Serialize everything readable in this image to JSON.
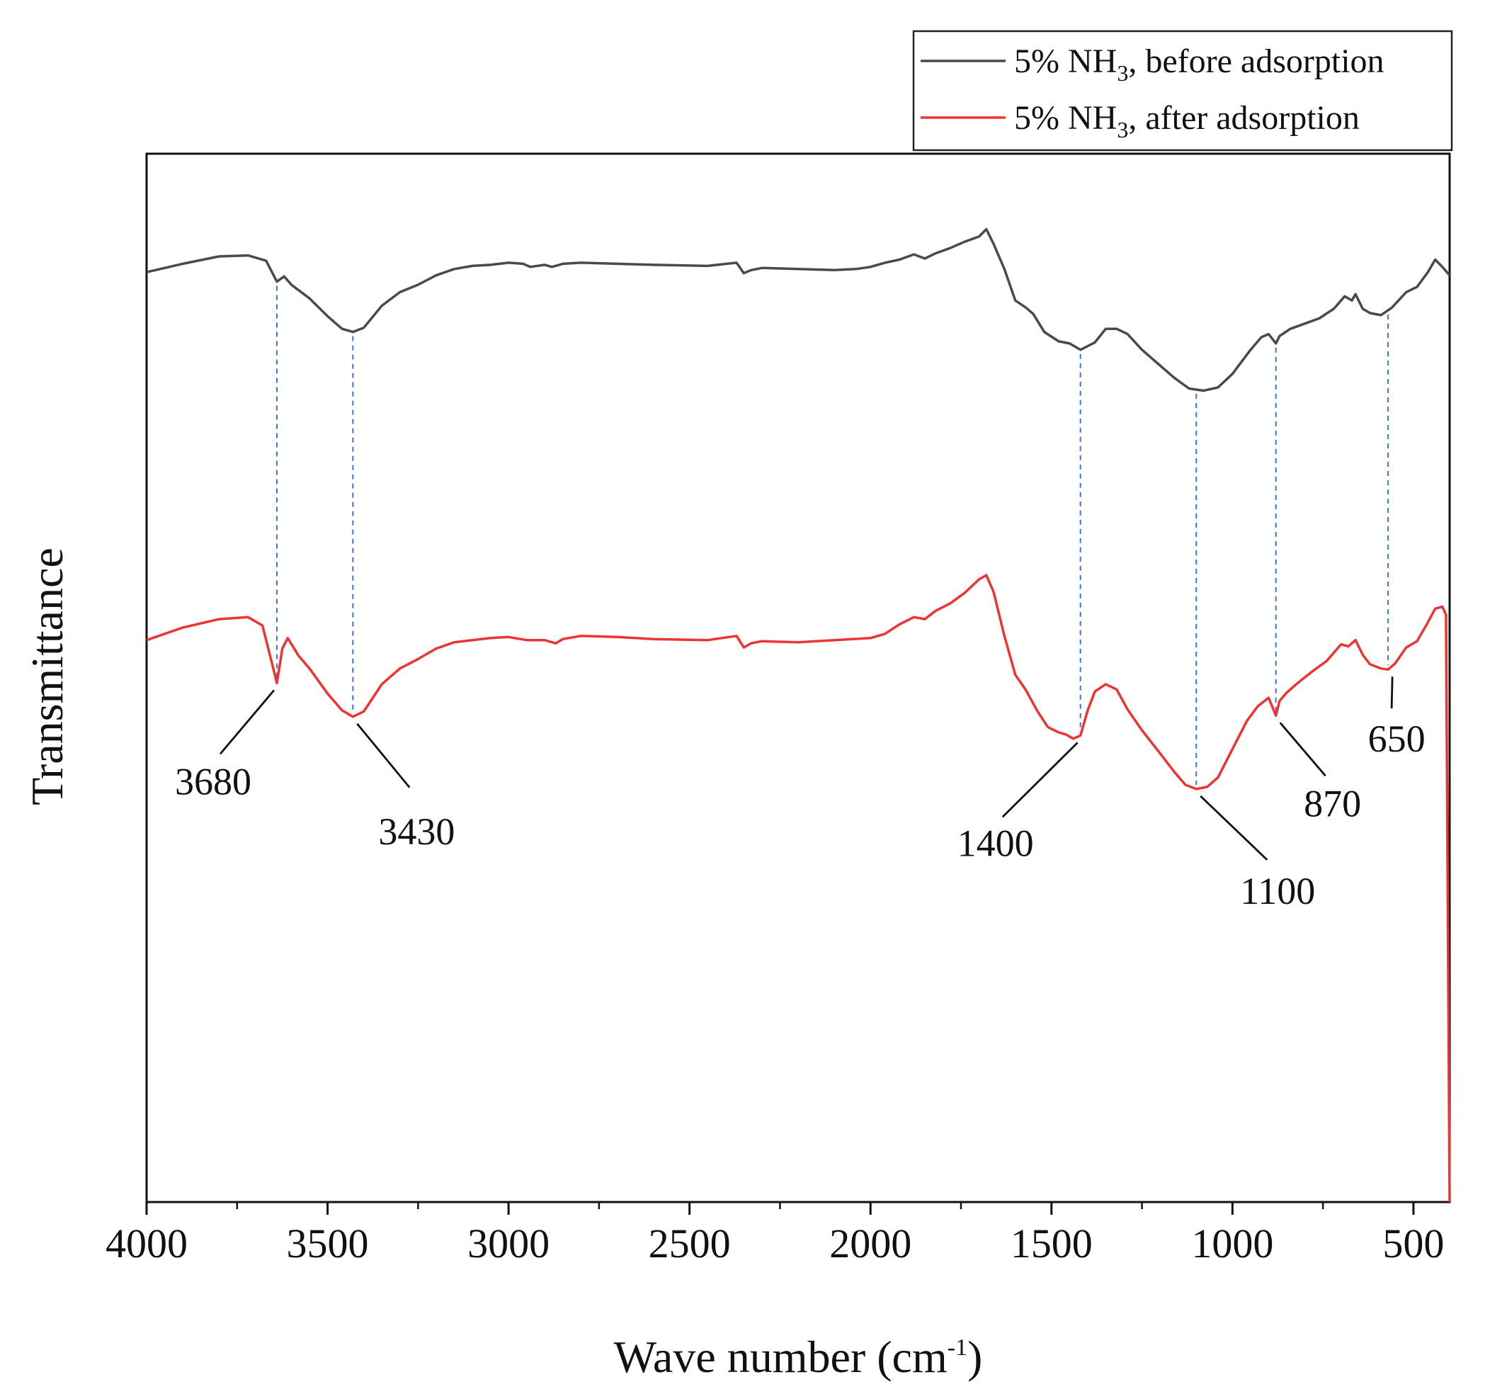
{
  "chart_data": {
    "type": "line",
    "title": "",
    "xlabel": {
      "main": "Wave number (cm",
      "sup": "-1",
      "close": ")"
    },
    "ylabel": "Transmittance",
    "xlim": [
      4000,
      400
    ],
    "x_reversed": true,
    "ylim": [
      0,
      100
    ],
    "grid": false,
    "y_tick_labels": false,
    "x_ticks": [
      4000,
      3500,
      3000,
      2500,
      2000,
      1500,
      1000,
      500
    ],
    "legend": {
      "placement": "top-right, above plot",
      "entries": [
        {
          "prefix": "5% NH",
          "sub": "3",
          "suffix": ", before adsorption",
          "color": "#4a4a4a"
        },
        {
          "prefix": "5% NH",
          "sub": "3",
          "suffix": ", after adsorption",
          "color": "#ee3333"
        }
      ]
    },
    "series": [
      {
        "color": "#4a4a4a",
        "points": [
          [
            4000,
            88.7
          ],
          [
            3900,
            89.5
          ],
          [
            3800,
            90.2
          ],
          [
            3720,
            90.3
          ],
          [
            3670,
            89.8
          ],
          [
            3640,
            87.8
          ],
          [
            3620,
            88.3
          ],
          [
            3600,
            87.5
          ],
          [
            3550,
            86.2
          ],
          [
            3500,
            84.5
          ],
          [
            3460,
            83.3
          ],
          [
            3430,
            83.0
          ],
          [
            3400,
            83.4
          ],
          [
            3350,
            85.5
          ],
          [
            3300,
            86.8
          ],
          [
            3250,
            87.5
          ],
          [
            3200,
            88.4
          ],
          [
            3150,
            89.0
          ],
          [
            3100,
            89.3
          ],
          [
            3050,
            89.4
          ],
          [
            3000,
            89.6
          ],
          [
            2960,
            89.5
          ],
          [
            2940,
            89.2
          ],
          [
            2900,
            89.4
          ],
          [
            2880,
            89.2
          ],
          [
            2850,
            89.5
          ],
          [
            2800,
            89.6
          ],
          [
            2700,
            89.5
          ],
          [
            2600,
            89.4
          ],
          [
            2450,
            89.3
          ],
          [
            2370,
            89.6
          ],
          [
            2350,
            88.6
          ],
          [
            2330,
            88.9
          ],
          [
            2300,
            89.1
          ],
          [
            2200,
            89.0
          ],
          [
            2100,
            88.9
          ],
          [
            2040,
            89.0
          ],
          [
            2000,
            89.2
          ],
          [
            1960,
            89.6
          ],
          [
            1920,
            89.9
          ],
          [
            1880,
            90.4
          ],
          [
            1850,
            90.0
          ],
          [
            1820,
            90.5
          ],
          [
            1780,
            91.0
          ],
          [
            1740,
            91.6
          ],
          [
            1700,
            92.1
          ],
          [
            1680,
            92.8
          ],
          [
            1660,
            91.4
          ],
          [
            1630,
            89.0
          ],
          [
            1600,
            86.0
          ],
          [
            1570,
            85.3
          ],
          [
            1550,
            84.7
          ],
          [
            1520,
            83.0
          ],
          [
            1480,
            82.1
          ],
          [
            1450,
            81.9
          ],
          [
            1420,
            81.3
          ],
          [
            1380,
            82.0
          ],
          [
            1350,
            83.3
          ],
          [
            1320,
            83.3
          ],
          [
            1290,
            82.8
          ],
          [
            1250,
            81.3
          ],
          [
            1200,
            79.8
          ],
          [
            1160,
            78.6
          ],
          [
            1120,
            77.6
          ],
          [
            1080,
            77.4
          ],
          [
            1040,
            77.7
          ],
          [
            1000,
            79.0
          ],
          [
            950,
            81.3
          ],
          [
            920,
            82.5
          ],
          [
            900,
            82.8
          ],
          [
            880,
            81.9
          ],
          [
            870,
            82.6
          ],
          [
            840,
            83.3
          ],
          [
            800,
            83.8
          ],
          [
            760,
            84.3
          ],
          [
            720,
            85.2
          ],
          [
            690,
            86.4
          ],
          [
            670,
            86.0
          ],
          [
            660,
            86.6
          ],
          [
            640,
            85.2
          ],
          [
            620,
            84.8
          ],
          [
            590,
            84.6
          ],
          [
            560,
            85.3
          ],
          [
            520,
            86.8
          ],
          [
            490,
            87.3
          ],
          [
            460,
            88.7
          ],
          [
            440,
            89.9
          ],
          [
            420,
            89.2
          ],
          [
            400,
            88.4
          ]
        ]
      },
      {
        "color": "#ee3333",
        "points": [
          [
            4000,
            53.6
          ],
          [
            3900,
            54.8
          ],
          [
            3800,
            55.6
          ],
          [
            3720,
            55.8
          ],
          [
            3680,
            55.0
          ],
          [
            3650,
            50.9
          ],
          [
            3640,
            49.5
          ],
          [
            3625,
            52.8
          ],
          [
            3610,
            53.8
          ],
          [
            3580,
            52.1
          ],
          [
            3550,
            50.9
          ],
          [
            3500,
            48.5
          ],
          [
            3460,
            46.9
          ],
          [
            3430,
            46.3
          ],
          [
            3400,
            46.8
          ],
          [
            3350,
            49.4
          ],
          [
            3300,
            50.9
          ],
          [
            3250,
            51.8
          ],
          [
            3200,
            52.8
          ],
          [
            3150,
            53.4
          ],
          [
            3100,
            53.6
          ],
          [
            3050,
            53.8
          ],
          [
            3000,
            53.9
          ],
          [
            2950,
            53.6
          ],
          [
            2900,
            53.6
          ],
          [
            2870,
            53.3
          ],
          [
            2850,
            53.7
          ],
          [
            2800,
            54.0
          ],
          [
            2700,
            53.9
          ],
          [
            2600,
            53.7
          ],
          [
            2450,
            53.6
          ],
          [
            2370,
            54.0
          ],
          [
            2350,
            52.9
          ],
          [
            2330,
            53.3
          ],
          [
            2300,
            53.5
          ],
          [
            2200,
            53.4
          ],
          [
            2100,
            53.6
          ],
          [
            2000,
            53.8
          ],
          [
            1960,
            54.2
          ],
          [
            1920,
            55.1
          ],
          [
            1880,
            55.8
          ],
          [
            1850,
            55.6
          ],
          [
            1820,
            56.4
          ],
          [
            1780,
            57.1
          ],
          [
            1740,
            58.1
          ],
          [
            1700,
            59.4
          ],
          [
            1680,
            59.8
          ],
          [
            1660,
            58.2
          ],
          [
            1630,
            54.0
          ],
          [
            1600,
            50.3
          ],
          [
            1570,
            48.8
          ],
          [
            1540,
            46.9
          ],
          [
            1510,
            45.3
          ],
          [
            1480,
            44.8
          ],
          [
            1460,
            44.6
          ],
          [
            1440,
            44.2
          ],
          [
            1420,
            44.5
          ],
          [
            1400,
            46.9
          ],
          [
            1380,
            48.7
          ],
          [
            1350,
            49.4
          ],
          [
            1320,
            48.9
          ],
          [
            1290,
            47.0
          ],
          [
            1250,
            45.0
          ],
          [
            1200,
            42.8
          ],
          [
            1160,
            41.0
          ],
          [
            1130,
            39.8
          ],
          [
            1100,
            39.4
          ],
          [
            1070,
            39.6
          ],
          [
            1040,
            40.5
          ],
          [
            1000,
            43.2
          ],
          [
            960,
            45.9
          ],
          [
            930,
            47.3
          ],
          [
            900,
            48.1
          ],
          [
            880,
            46.4
          ],
          [
            870,
            47.8
          ],
          [
            850,
            48.6
          ],
          [
            820,
            49.5
          ],
          [
            780,
            50.6
          ],
          [
            740,
            51.6
          ],
          [
            700,
            53.2
          ],
          [
            680,
            53.0
          ],
          [
            660,
            53.6
          ],
          [
            640,
            52.2
          ],
          [
            620,
            51.3
          ],
          [
            590,
            50.9
          ],
          [
            570,
            50.8
          ],
          [
            550,
            51.4
          ],
          [
            520,
            52.9
          ],
          [
            490,
            53.5
          ],
          [
            460,
            55.3
          ],
          [
            440,
            56.6
          ],
          [
            420,
            56.8
          ],
          [
            410,
            56.0
          ],
          [
            400,
            0
          ]
        ]
      }
    ],
    "annotations": [
      {
        "label": "3680",
        "x": 3640
      },
      {
        "label": "3430",
        "x": 3430
      },
      {
        "label": "1400",
        "x": 1420
      },
      {
        "label": "1100",
        "x": 1100
      },
      {
        "label": "870",
        "x": 880
      },
      {
        "label": "650",
        "x": 570
      }
    ]
  }
}
